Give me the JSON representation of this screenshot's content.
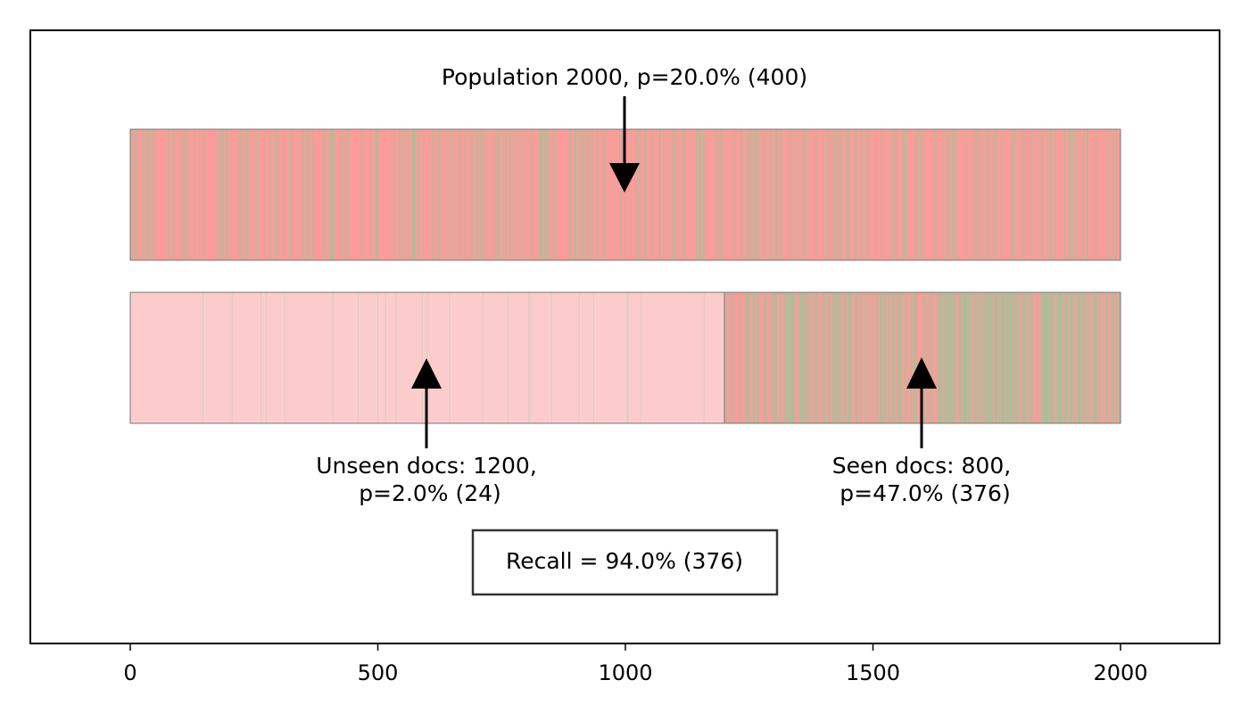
{
  "chart_data": {
    "type": "bar",
    "title": "",
    "xlabel": "",
    "ylabel": "",
    "xlim": [
      -200,
      2200
    ],
    "x_ticks": [
      0,
      500,
      1000,
      1500,
      2000
    ],
    "x_tick_labels": [
      "0",
      "500",
      "1000",
      "1500",
      "2000"
    ],
    "grid": false,
    "population": {
      "total": 2000,
      "relevant": 400,
      "prevalence_percent": 20.0,
      "label": "Population 2000, p=20.0% (400)"
    },
    "unseen": {
      "start": 0,
      "end": 1200,
      "count": 1200,
      "relevant": 24,
      "prevalence_percent": 2.0,
      "label_line1": "Unseen docs: 1200,",
      "label_line2": "p=2.0% (24)"
    },
    "seen": {
      "start": 1200,
      "end": 2000,
      "count": 800,
      "relevant": 376,
      "prevalence_percent": 47.0,
      "label_line1": "Seen docs: 800,",
      "label_line2": "p=47.0% (376)"
    },
    "recall": {
      "percent": 94.0,
      "found": 376,
      "label": "Recall = 94.0% (376)"
    },
    "colors": {
      "relevant": "#7fd49a",
      "irrelevant": "#ff9a9a",
      "unseen_bg": "#fccccc",
      "frame": "#000000",
      "bar_edge": "#777777"
    }
  }
}
